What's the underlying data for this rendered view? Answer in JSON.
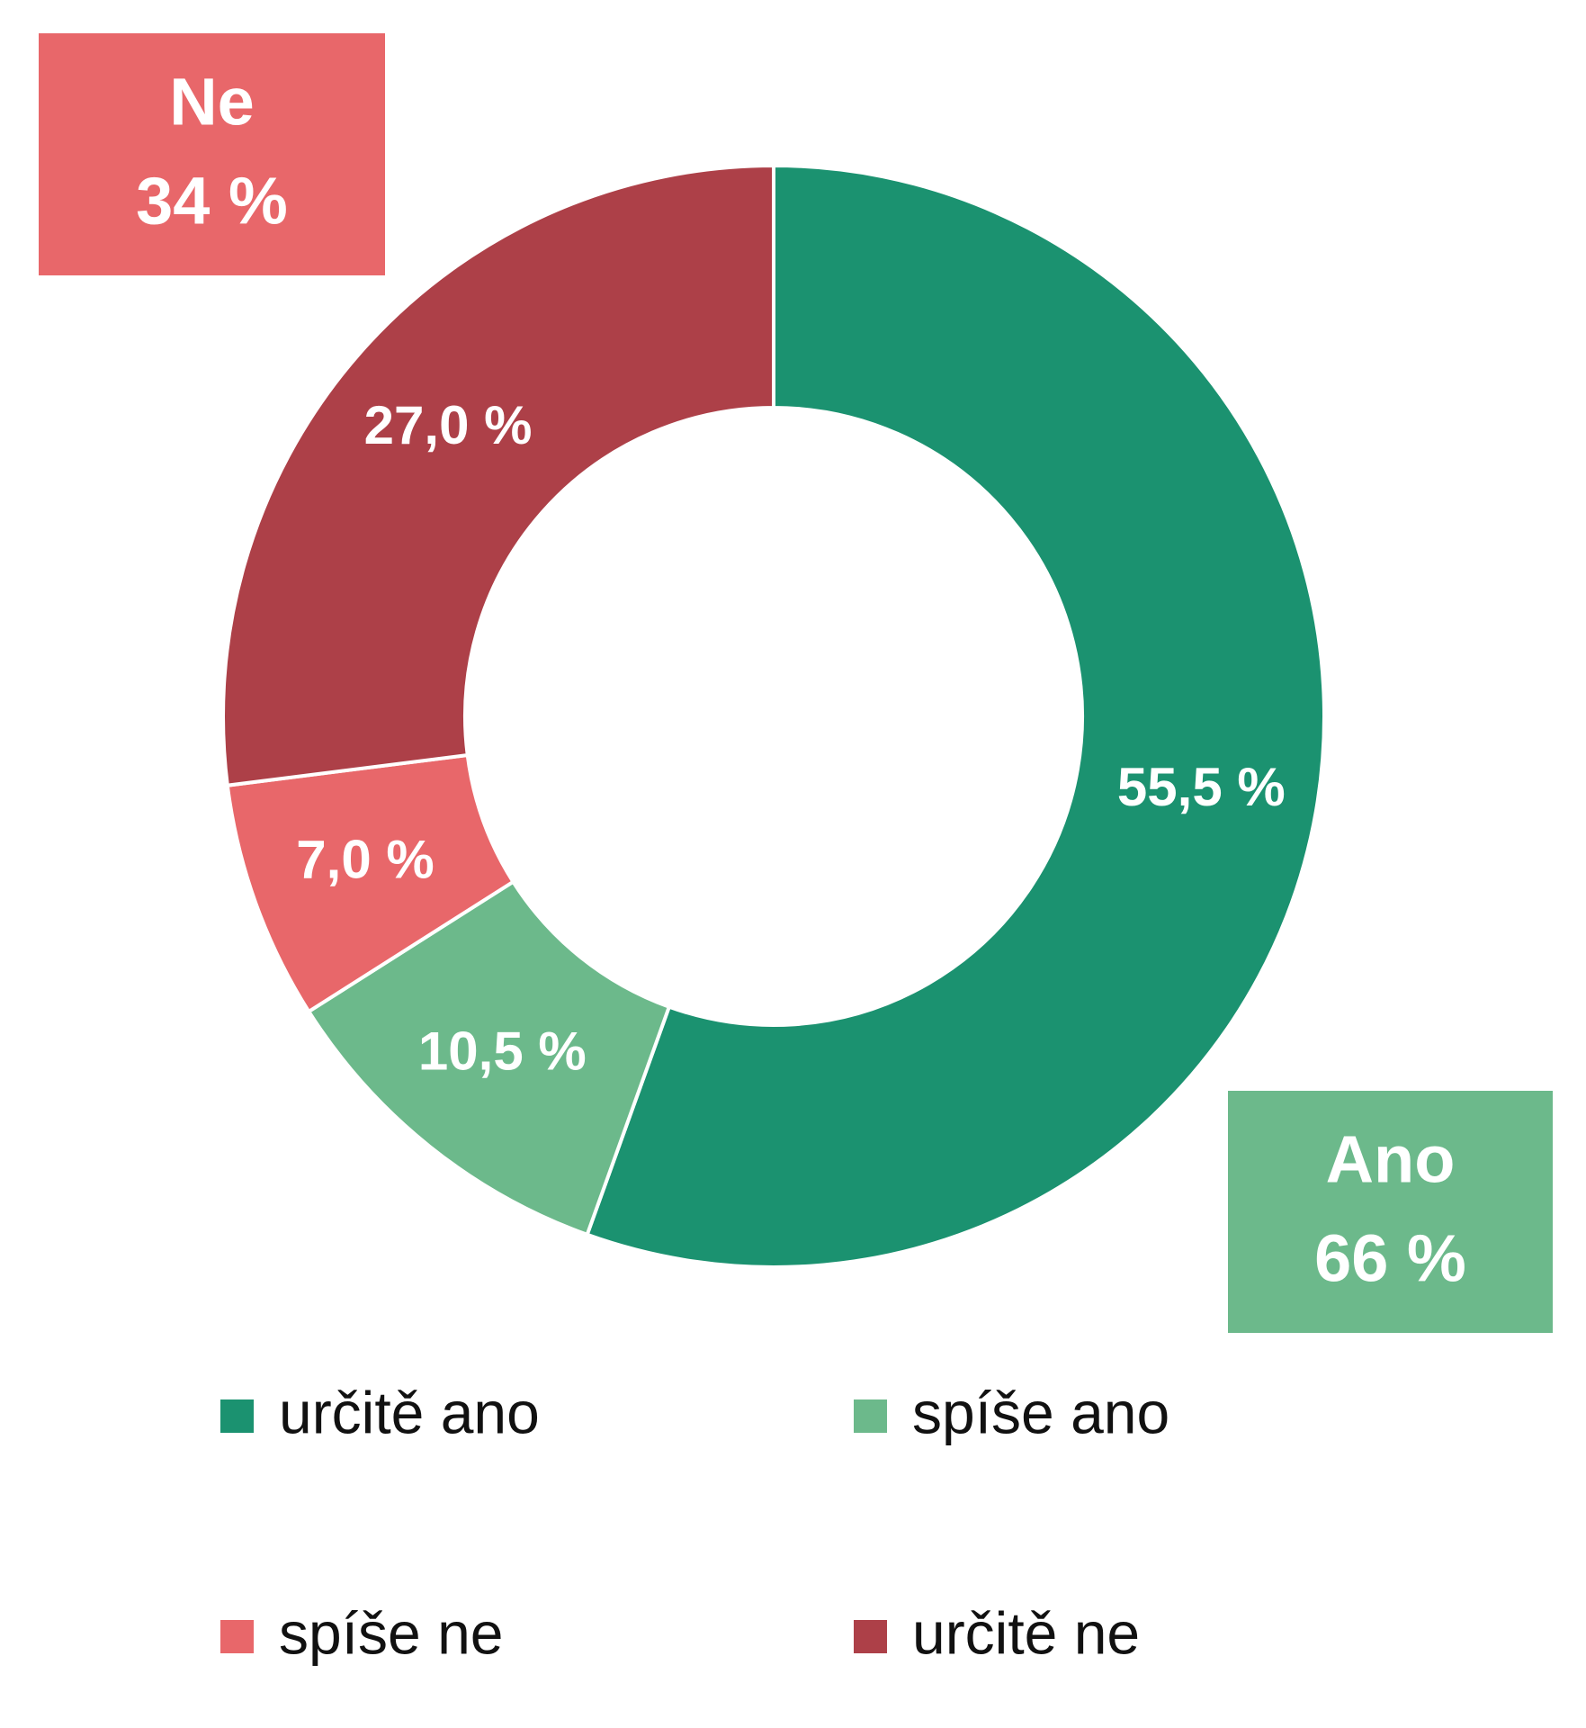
{
  "chart_data": {
    "type": "donut",
    "categories": [
      "určitě ano",
      "spíše ano",
      "spíše ne",
      "určitě ne"
    ],
    "values": [
      55.5,
      10.5,
      7.0,
      27.0
    ],
    "value_labels": [
      "55,5 %",
      "10,5 %",
      "7,0 %",
      "27,0 %"
    ],
    "colors": [
      "#1b9270",
      "#6cb98b",
      "#e8676a",
      "#ad4048"
    ],
    "annotations": [
      {
        "title": "Ne",
        "value": 34,
        "label": "34 %",
        "color": "#e8676a"
      },
      {
        "title": "Ano",
        "value": 66,
        "label": "66 %",
        "color": "#6cb98b"
      }
    ]
  }
}
